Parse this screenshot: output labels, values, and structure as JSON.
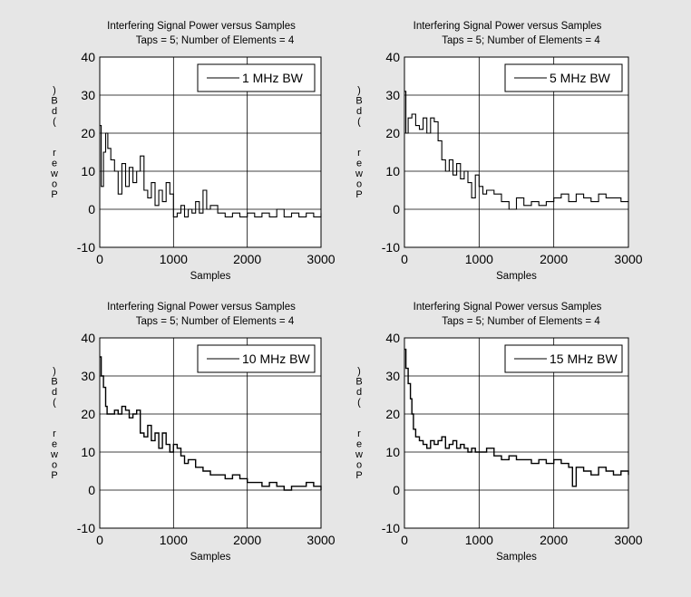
{
  "chart_data": [
    {
      "type": "line",
      "title": "Interfering Signal Power versus Samples",
      "subtitle": "Taps = 5; Number of Elements = 4",
      "xlabel": "Samples",
      "ylabel": ")Bd(  rewoP",
      "xlim": [
        0,
        3000
      ],
      "ylim": [
        -10,
        40
      ],
      "xticks": [
        "0",
        "1000",
        "2000",
        "3000"
      ],
      "yticks": [
        "40",
        "30",
        "20",
        "10",
        "0",
        "-10"
      ],
      "grid": true,
      "legend_position": "top-right",
      "series": [
        {
          "name": "1 MHz BW",
          "color": "#000000",
          "x": [
            0,
            20,
            50,
            80,
            110,
            150,
            200,
            250,
            300,
            350,
            400,
            450,
            500,
            550,
            600,
            650,
            700,
            750,
            800,
            850,
            900,
            950,
            1000,
            1050,
            1100,
            1150,
            1200,
            1250,
            1300,
            1350,
            1400,
            1450,
            1500,
            1600,
            1700,
            1800,
            1900,
            2000,
            2100,
            2200,
            2300,
            2400,
            2500,
            2600,
            2700,
            2800,
            2900,
            3000
          ],
          "y": [
            22,
            6,
            15,
            20,
            16,
            13,
            10,
            4,
            12,
            6,
            11,
            7,
            10,
            14,
            5,
            3,
            7,
            1,
            5,
            2,
            7,
            4,
            -2,
            -1,
            1,
            -2,
            0,
            -1,
            2,
            -1,
            5,
            0,
            1,
            -1,
            -2,
            -1,
            -2,
            -1,
            -2,
            -1,
            -2,
            0,
            -2,
            -1,
            -2,
            -1,
            -2,
            -1
          ]
        },
        {
          "name": "5 MHz BW",
          "color": "#000000",
          "x": [
            0,
            20,
            50,
            100,
            150,
            200,
            250,
            300,
            350,
            400,
            450,
            500,
            550,
            600,
            650,
            700,
            750,
            800,
            850,
            900,
            950,
            1000,
            1050,
            1100,
            1200,
            1300,
            1400,
            1500,
            1600,
            1700,
            1800,
            1900,
            2000,
            2100,
            2200,
            2300,
            2400,
            2500,
            2600,
            2700,
            2800,
            2900,
            3000
          ],
          "y": [
            31,
            20,
            24,
            25,
            22,
            21,
            24,
            20,
            24,
            23,
            18,
            13,
            10,
            13,
            9,
            12,
            8,
            10,
            7,
            3,
            9,
            6,
            4,
            5,
            4,
            2,
            0,
            3,
            1,
            2,
            1,
            2,
            3,
            4,
            2,
            4,
            3,
            2,
            4,
            3,
            3,
            2,
            2
          ]
        },
        {
          "name": "10 MHz BW",
          "color": "#000000",
          "x": [
            0,
            20,
            50,
            80,
            100,
            150,
            200,
            250,
            300,
            350,
            400,
            450,
            500,
            550,
            600,
            650,
            700,
            750,
            800,
            850,
            900,
            950,
            1000,
            1050,
            1100,
            1150,
            1200,
            1300,
            1400,
            1500,
            1600,
            1700,
            1800,
            1900,
            2000,
            2100,
            2200,
            2300,
            2400,
            2500,
            2600,
            2700,
            2800,
            2900,
            3000
          ],
          "y": [
            35,
            30,
            27,
            22,
            20,
            20,
            21,
            20,
            22,
            21,
            19,
            20,
            21,
            15,
            14,
            17,
            13,
            15,
            11,
            15,
            12,
            10,
            12,
            11,
            9,
            7,
            8,
            6,
            5,
            4,
            4,
            3,
            4,
            3,
            2,
            2,
            1,
            2,
            1,
            0,
            1,
            1,
            2,
            1,
            0
          ]
        },
        {
          "name": "15 MHz BW",
          "color": "#000000",
          "x": [
            0,
            20,
            50,
            80,
            100,
            120,
            150,
            200,
            250,
            300,
            350,
            400,
            450,
            500,
            550,
            600,
            650,
            700,
            750,
            800,
            850,
            900,
            950,
            1000,
            1100,
            1200,
            1300,
            1400,
            1500,
            1600,
            1700,
            1800,
            1900,
            2000,
            2100,
            2200,
            2250,
            2300,
            2400,
            2500,
            2600,
            2700,
            2800,
            2900,
            3000
          ],
          "y": [
            37,
            32,
            28,
            24,
            20,
            16,
            14,
            13,
            12,
            11,
            13,
            12,
            13,
            14,
            11,
            12,
            13,
            11,
            12,
            11,
            10,
            11,
            10,
            10,
            11,
            9,
            8,
            9,
            8,
            8,
            7,
            8,
            7,
            8,
            7,
            6,
            1,
            6,
            5,
            4,
            6,
            5,
            4,
            5,
            4
          ]
        }
      ]
    }
  ]
}
